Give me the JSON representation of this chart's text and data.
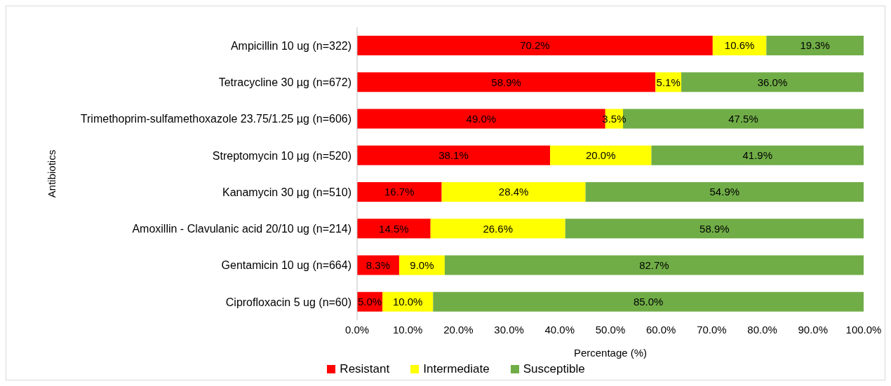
{
  "chart_data": {
    "type": "bar",
    "orientation": "horizontal",
    "stacked": true,
    "xlabel": "Percentage (%)",
    "ylabel": "Antibiotics",
    "categories": [
      "Ampicillin 10 ug (n=322)",
      "Tetracycline 30 µg (n=672)",
      "Trimethoprim-sulfamethoxazole 23.75/1.25 µg (n=606)",
      "Streptomycin 10 µg (n=520)",
      "Kanamycin 30 µg (n=510)",
      "Amoxillin - Clavulanic acid 20/10 ug (n=214)",
      "Gentamicin 10 ug (n=664)",
      "Ciprofloxacin 5 ug (n=60)"
    ],
    "series": [
      {
        "name": "Resistant",
        "color": "#ff0000",
        "values": [
          70.2,
          58.9,
          49.0,
          38.1,
          16.7,
          14.5,
          8.3,
          5.0
        ],
        "value_labels": [
          "70.2%",
          "58.9%",
          "49.0%",
          "38.1%",
          "16.7%",
          "14.5%",
          "8.3%",
          "5.0%"
        ]
      },
      {
        "name": "Intermediate",
        "color": "#ffff00",
        "values": [
          10.6,
          5.1,
          3.5,
          20.0,
          28.4,
          26.6,
          9.0,
          10.0
        ],
        "value_labels": [
          "10.6%",
          "5.1%",
          "3.5%",
          "20.0%",
          "28.4%",
          "26.6%",
          "9.0%",
          "10.0%"
        ]
      },
      {
        "name": "Susceptible",
        "color": "#70ad47",
        "values": [
          19.3,
          36.0,
          47.5,
          41.9,
          54.9,
          58.9,
          82.7,
          85.0
        ],
        "value_labels": [
          "19.3%",
          "36.0%",
          "47.5%",
          "41.9%",
          "54.9%",
          "58.9%",
          "82.7%",
          "85.0%"
        ]
      }
    ],
    "xlim": [
      0,
      100
    ],
    "xticks": [
      {
        "value": 0,
        "label": "0.0%"
      },
      {
        "value": 10,
        "label": "10.0%"
      },
      {
        "value": 20,
        "label": "20.0%"
      },
      {
        "value": 30,
        "label": "30.0%"
      },
      {
        "value": 40,
        "label": "40.0%"
      },
      {
        "value": 50,
        "label": "50.0%"
      },
      {
        "value": 60,
        "label": "60.0%"
      },
      {
        "value": 70,
        "label": "70.0%"
      },
      {
        "value": 80,
        "label": "80.0%"
      },
      {
        "value": 90,
        "label": "90.0%"
      },
      {
        "value": 100,
        "label": "100.0%"
      }
    ],
    "grid": false,
    "legend": "bottom"
  }
}
